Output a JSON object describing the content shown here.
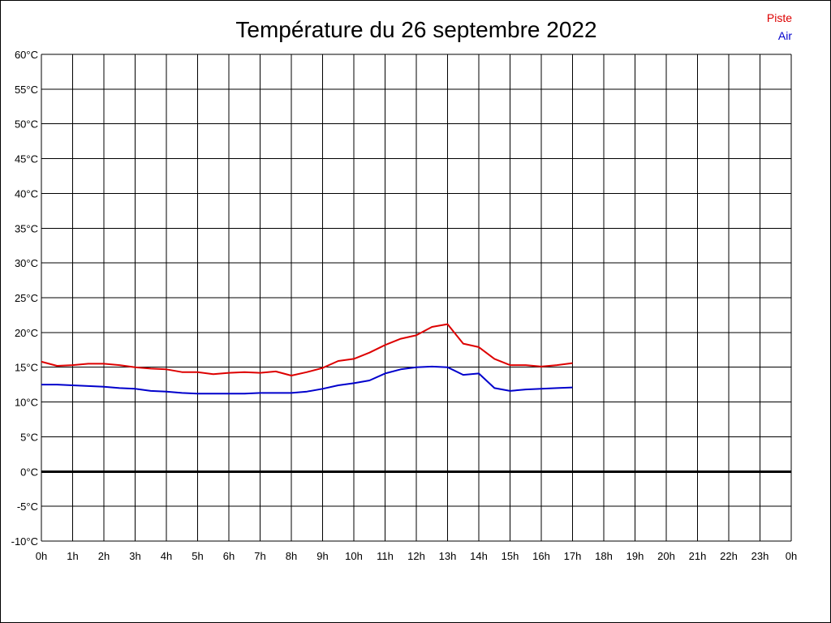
{
  "chart_data": {
    "type": "line",
    "title": "Température du 26 septembre 2022",
    "x_tick_labels": [
      "0h",
      "1h",
      "2h",
      "3h",
      "4h",
      "5h",
      "6h",
      "7h",
      "8h",
      "9h",
      "10h",
      "11h",
      "12h",
      "13h",
      "14h",
      "15h",
      "16h",
      "17h",
      "18h",
      "19h",
      "20h",
      "21h",
      "22h",
      "23h",
      "0h"
    ],
    "y_tick_labels": [
      "60°C",
      "55°C",
      "50°C",
      "45°C",
      "40°C",
      "35°C",
      "30°C",
      "25°C",
      "20°C",
      "15°C",
      "10°C",
      "5°C",
      "0°C",
      "-5°C",
      "-10°C"
    ],
    "xlim": [
      0,
      24
    ],
    "ylim": [
      -10,
      60
    ],
    "grid": true,
    "legend_position": "top-right",
    "series": [
      {
        "name": "Piste",
        "color": "#dd0000",
        "x": [
          0,
          0.5,
          1,
          1.5,
          2,
          2.5,
          3,
          3.5,
          4,
          4.5,
          5,
          5.5,
          6,
          6.5,
          7,
          7.5,
          8,
          8.5,
          9,
          9.5,
          10,
          10.5,
          11,
          11.5,
          12,
          12.5,
          13,
          13.5,
          14,
          14.5,
          15,
          15.5,
          16,
          16.5,
          17
        ],
        "values": [
          15.8,
          15.2,
          15.3,
          15.5,
          15.5,
          15.3,
          15.0,
          14.8,
          14.7,
          14.3,
          14.3,
          14.0,
          14.2,
          14.3,
          14.2,
          14.4,
          13.8,
          14.3,
          14.9,
          15.9,
          16.2,
          17.1,
          18.2,
          19.1,
          19.6,
          20.8,
          21.2,
          18.4,
          17.9,
          16.2,
          15.3,
          15.3,
          15.1,
          15.3,
          15.6
        ]
      },
      {
        "name": "Air",
        "color": "#0000cc",
        "x": [
          0,
          0.5,
          1,
          1.5,
          2,
          2.5,
          3,
          3.5,
          4,
          4.5,
          5,
          5.5,
          6,
          6.5,
          7,
          7.5,
          8,
          8.5,
          9,
          9.5,
          10,
          10.5,
          11,
          11.5,
          12,
          12.5,
          13,
          13.5,
          14,
          14.5,
          15,
          15.5,
          16,
          16.5,
          17
        ],
        "values": [
          12.5,
          12.5,
          12.4,
          12.3,
          12.2,
          12.0,
          11.9,
          11.6,
          11.5,
          11.3,
          11.2,
          11.2,
          11.2,
          11.2,
          11.3,
          11.3,
          11.3,
          11.5,
          11.9,
          12.4,
          12.7,
          13.1,
          14.1,
          14.7,
          15.0,
          15.1,
          15.0,
          13.9,
          14.1,
          12.0,
          11.6,
          11.8,
          11.9,
          12.0,
          12.1
        ]
      }
    ],
    "zero_line_color": "#000000"
  }
}
